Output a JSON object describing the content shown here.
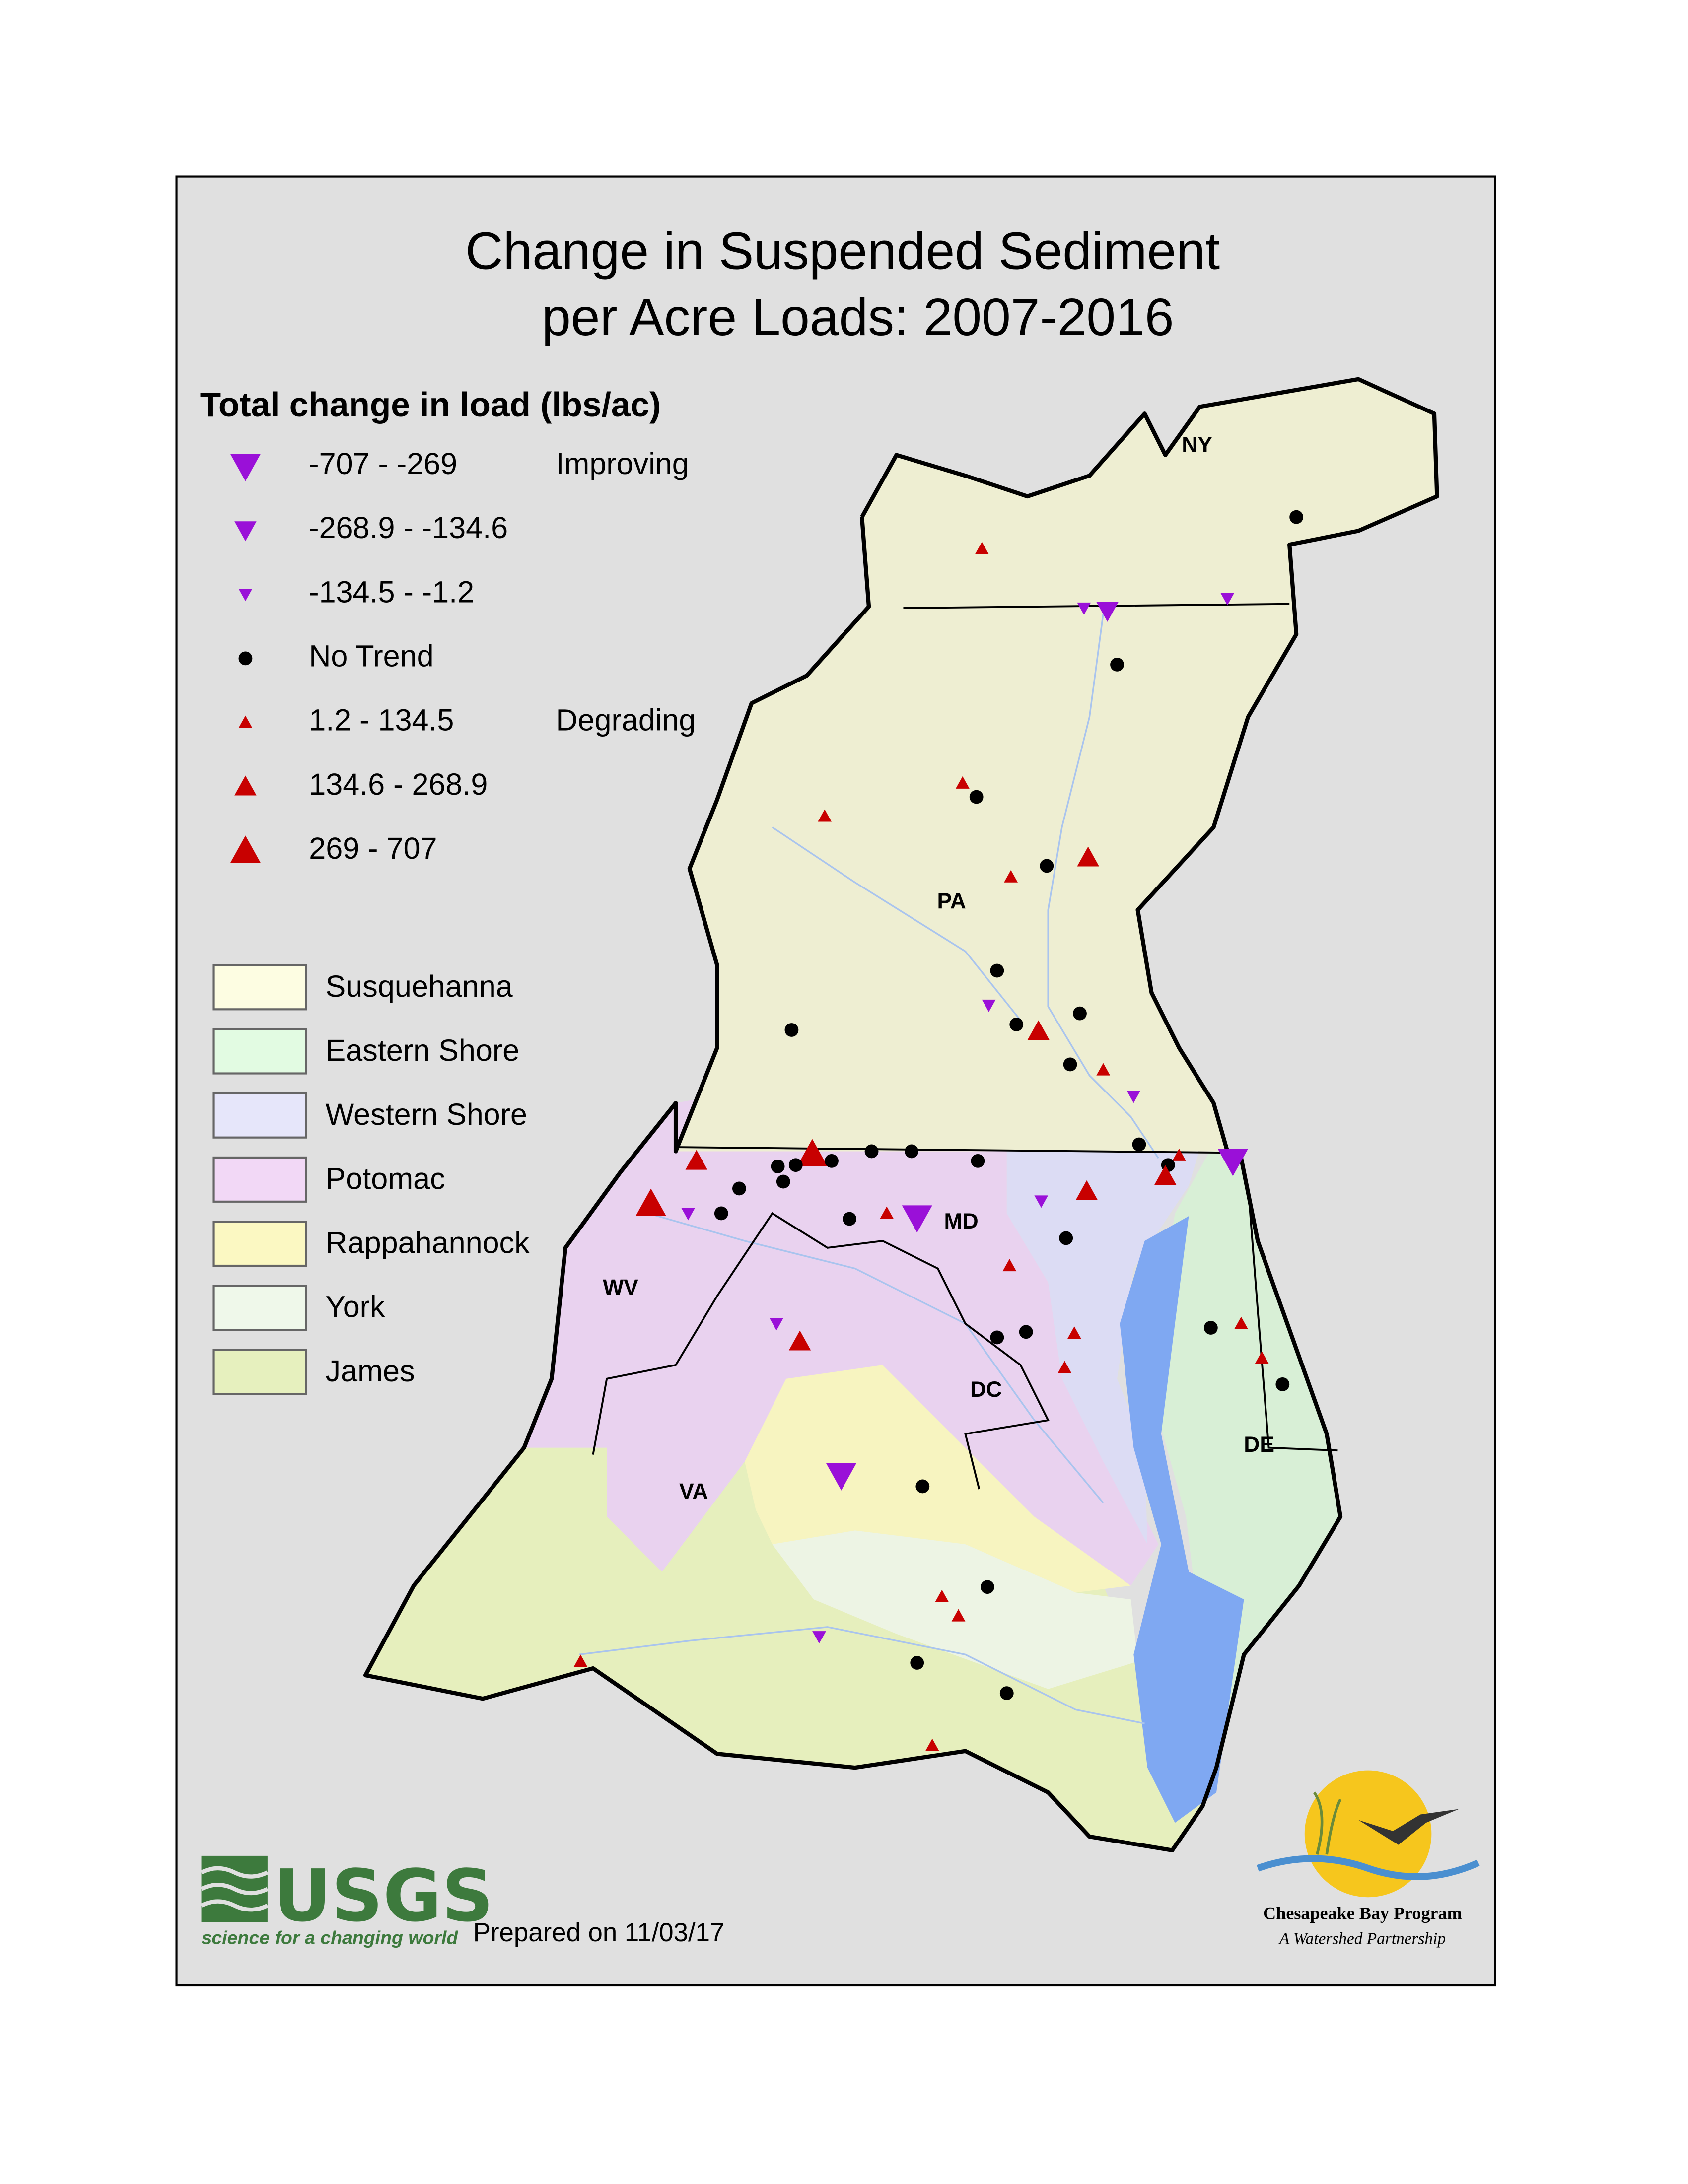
{
  "title": [
    "Change in Suspended Sediment",
    "per Acre Loads: 2007-2016"
  ],
  "legend": {
    "title": "Total change in load (lbs/ac)",
    "classes": [
      {
        "label": "-707 - -269",
        "note": "Improving"
      },
      {
        "label": "-268.9 - -134.6"
      },
      {
        "label": "-134.5 - -1.2"
      },
      {
        "label": "No Trend"
      },
      {
        "label": "1.2 - 134.5",
        "note": "Degrading"
      },
      {
        "label": "134.6 - 268.9"
      },
      {
        "label": "269 - 707"
      }
    ]
  },
  "regions": [
    "Susquehanna",
    "Eastern Shore",
    "Western Shore",
    "Potomac",
    "Rappahannock",
    "York",
    "James"
  ],
  "states": [
    "NY",
    "PA",
    "MD",
    "WV",
    "DC",
    "DE",
    "VA"
  ],
  "usgs": {
    "name": "USGS",
    "tagline": "science for a changing world"
  },
  "prepared": "Prepared on 11/03/17",
  "cbp": {
    "name": "Chesapeake Bay Program",
    "tagline": "A Watershed Partnership"
  }
}
